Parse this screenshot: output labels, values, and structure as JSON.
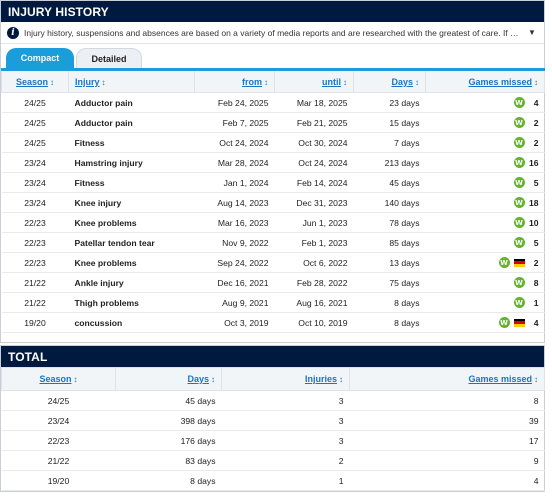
{
  "injury_history": {
    "title": "INJURY HISTORY",
    "info_text": "Injury history, suspensions and absences are based on a variety of media reports and are researched with the greatest of care. If you should n...",
    "tabs": [
      {
        "label": "Compact"
      },
      {
        "label": "Detailed"
      }
    ],
    "columns": {
      "season": "Season",
      "injury": "Injury",
      "from": "from",
      "until": "until",
      "days": "Days",
      "games_missed": "Games missed"
    },
    "rows": [
      {
        "season": "24/25",
        "injury": "Adductor pain",
        "from": "Feb 24, 2025",
        "until": "Mar 18, 2025",
        "days": "23 days",
        "games": "4",
        "flag": false
      },
      {
        "season": "24/25",
        "injury": "Adductor pain",
        "from": "Feb 7, 2025",
        "until": "Feb 21, 2025",
        "days": "15 days",
        "games": "2",
        "flag": false
      },
      {
        "season": "24/25",
        "injury": "Fitness",
        "from": "Oct 24, 2024",
        "until": "Oct 30, 2024",
        "days": "7 days",
        "games": "2",
        "flag": false
      },
      {
        "season": "23/24",
        "injury": "Hamstring injury",
        "from": "Mar 28, 2024",
        "until": "Oct 24, 2024",
        "days": "213 days",
        "games": "16",
        "flag": false
      },
      {
        "season": "23/24",
        "injury": "Fitness",
        "from": "Jan 1, 2024",
        "until": "Feb 14, 2024",
        "days": "45 days",
        "games": "5",
        "flag": false
      },
      {
        "season": "23/24",
        "injury": "Knee injury",
        "from": "Aug 14, 2023",
        "until": "Dec 31, 2023",
        "days": "140 days",
        "games": "18",
        "flag": false
      },
      {
        "season": "22/23",
        "injury": "Knee problems",
        "from": "Mar 16, 2023",
        "until": "Jun 1, 2023",
        "days": "78 days",
        "games": "10",
        "flag": false
      },
      {
        "season": "22/23",
        "injury": "Patellar tendon tear",
        "from": "Nov 9, 2022",
        "until": "Feb 1, 2023",
        "days": "85 days",
        "games": "5",
        "flag": false
      },
      {
        "season": "22/23",
        "injury": "Knee problems",
        "from": "Sep 24, 2022",
        "until": "Oct 6, 2022",
        "days": "13 days",
        "games": "2",
        "flag": true
      },
      {
        "season": "21/22",
        "injury": "Ankle injury",
        "from": "Dec 16, 2021",
        "until": "Feb 28, 2022",
        "days": "75 days",
        "games": "8",
        "flag": false
      },
      {
        "season": "21/22",
        "injury": "Thigh problems",
        "from": "Aug 9, 2021",
        "until": "Aug 16, 2021",
        "days": "8 days",
        "games": "1",
        "flag": false
      },
      {
        "season": "19/20",
        "injury": "concussion",
        "from": "Oct 3, 2019",
        "until": "Oct 10, 2019",
        "days": "8 days",
        "games": "4",
        "flag": true
      }
    ]
  },
  "total": {
    "title": "TOTAL",
    "columns": {
      "season": "Season",
      "days": "Days",
      "injuries": "Injuries",
      "games_missed": "Games missed"
    },
    "rows": [
      {
        "season": "24/25",
        "days": "45 days",
        "injuries": "3",
        "games": "8"
      },
      {
        "season": "23/24",
        "days": "398 days",
        "injuries": "3",
        "games": "39"
      },
      {
        "season": "22/23",
        "days": "176 days",
        "injuries": "3",
        "games": "17"
      },
      {
        "season": "21/22",
        "days": "83 days",
        "injuries": "2",
        "games": "9"
      },
      {
        "season": "19/20",
        "days": "8 days",
        "injuries": "1",
        "games": "4"
      }
    ]
  },
  "icons": {
    "sort": "↕",
    "info": "i",
    "chevron": "▼",
    "club": "W"
  },
  "colors": {
    "header_bg": "#00193f",
    "accent": "#1a9dda",
    "link": "#1a73c5",
    "club_green": "#65b32e"
  }
}
